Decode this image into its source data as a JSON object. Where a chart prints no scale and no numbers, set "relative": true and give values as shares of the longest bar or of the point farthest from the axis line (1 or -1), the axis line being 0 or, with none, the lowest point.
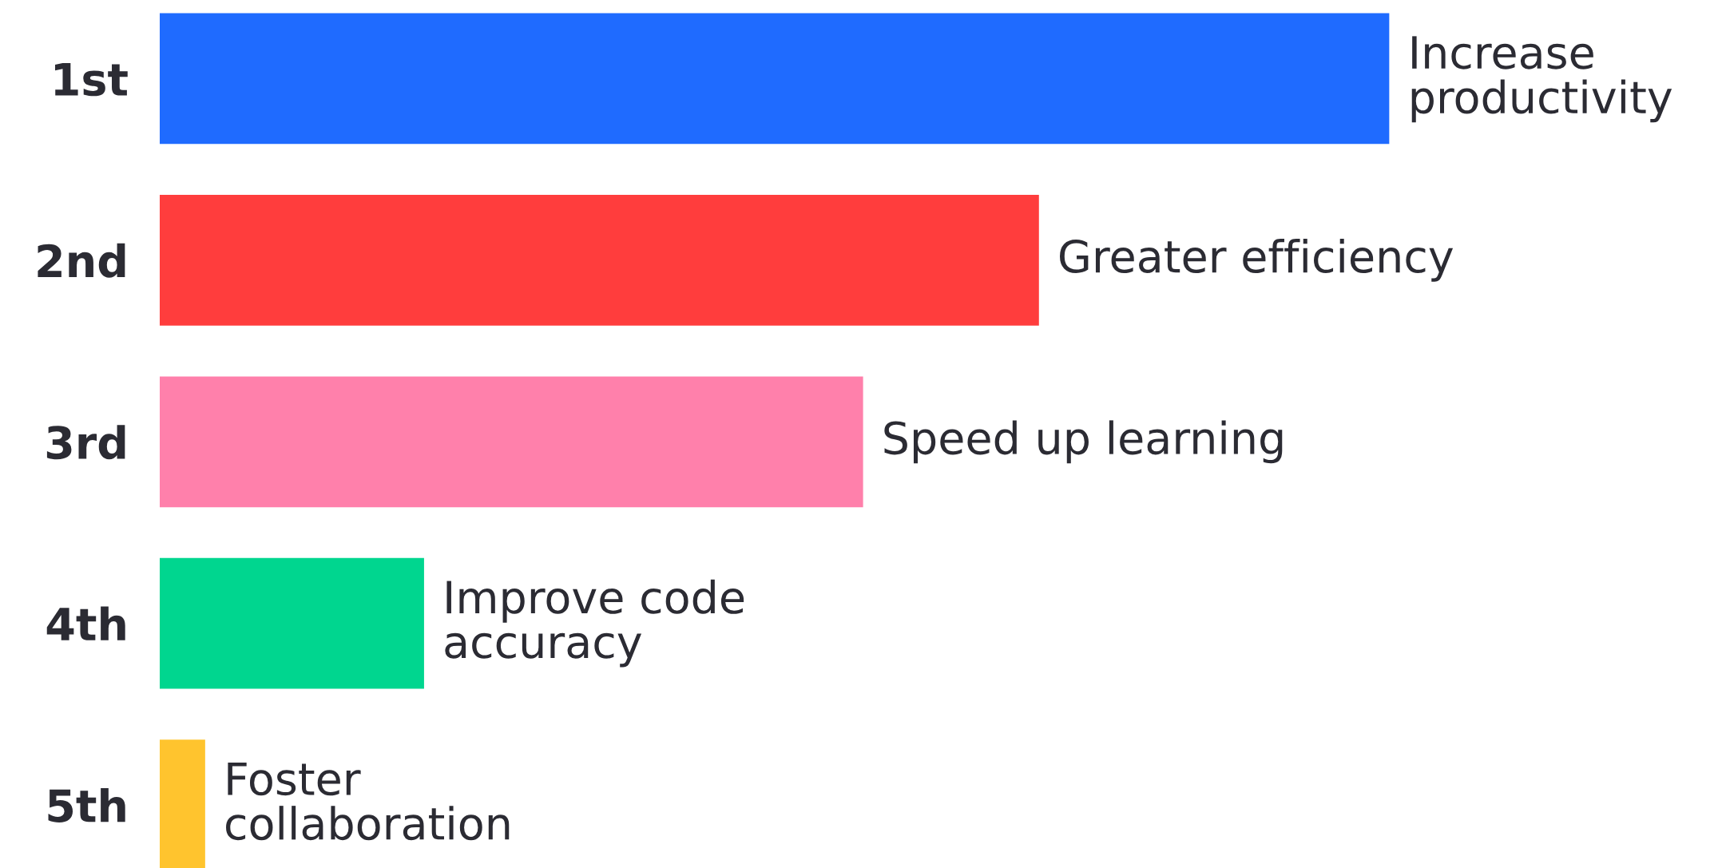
{
  "chart_data": {
    "type": "bar",
    "orientation": "horizontal",
    "relative": true,
    "categories": [
      "1st",
      "2nd",
      "3rd",
      "4th",
      "5th"
    ],
    "values": [
      1,
      0.715,
      0.572,
      0.215,
      0.037
    ],
    "colors": [
      "#1f6bff",
      "#ff3d3d",
      "#ff80ab",
      "#00d68f",
      "#ffc42e"
    ],
    "annotations": [
      {
        "text": "Increase\nproductivity",
        "x": 1,
        "y": "1st"
      },
      {
        "text": "Greater efficiency",
        "x": 0.715,
        "y": "2nd"
      },
      {
        "text": "Speed up learning",
        "x": 0.572,
        "y": "3rd"
      },
      {
        "text": "Improve code\naccuracy",
        "x": 0.215,
        "y": "4th"
      },
      {
        "text": "Foster\ncollaboration",
        "x": 0.037,
        "y": "5th"
      }
    ],
    "grid": false,
    "legend": false
  }
}
